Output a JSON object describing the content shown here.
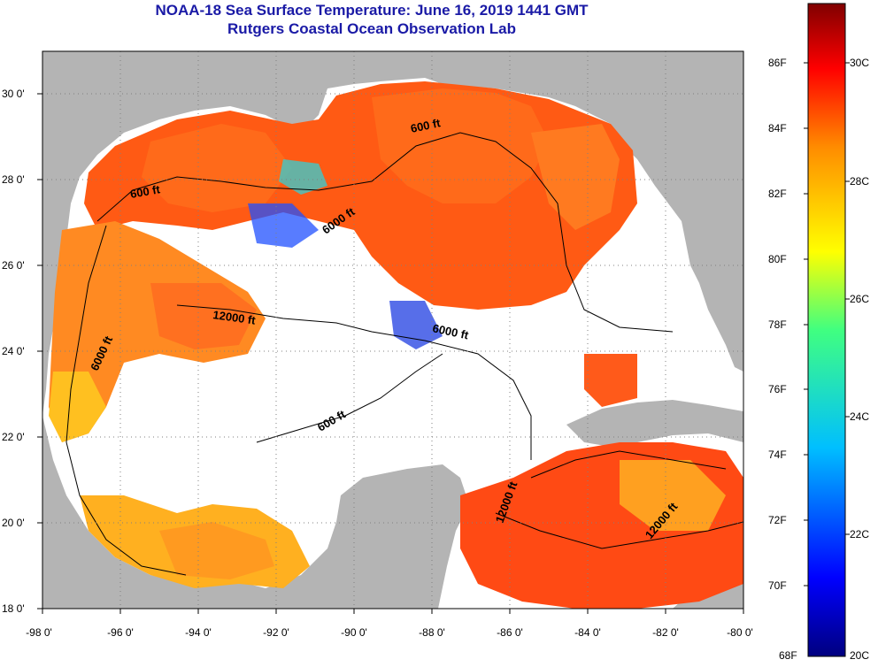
{
  "header": {
    "title_line1": "NOAA-18 Sea Surface Temperature:  June 16, 2019 1441 GMT",
    "title_line2": "Rutgers Coastal Ocean Observation Lab"
  },
  "map": {
    "lon_range": [
      -98,
      -80
    ],
    "lat_range": [
      18,
      31
    ],
    "lon_ticks": [
      "-98 0'",
      "-96 0'",
      "-94 0'",
      "-92 0'",
      "-90 0'",
      "-88 0'",
      "-86 0'",
      "-84 0'",
      "-82 0'",
      "-80 0'"
    ],
    "lat_ticks": [
      "30 0'",
      "28 0'",
      "26 0'",
      "24 0'",
      "22 0'",
      "20 0'",
      "18 0'"
    ],
    "contour_labels": [
      "600 ft",
      "600 ft",
      "6000 ft",
      "12000 ft",
      "6000 ft",
      "6000 ft",
      "600 ft",
      "12000 ft",
      "12000 ft"
    ],
    "land_color": "#b4b4b4",
    "cloud_color": "#ffffff"
  },
  "colorbar": {
    "fahrenheit_labels": [
      "86F",
      "84F",
      "82F",
      "80F",
      "78F",
      "76F",
      "74F",
      "72F",
      "70F",
      "68F"
    ],
    "celsius_labels": [
      "30C",
      "28C",
      "26C",
      "24C",
      "22C",
      "20C"
    ],
    "top_color": "#800000",
    "bottom_color": "#000080"
  }
}
